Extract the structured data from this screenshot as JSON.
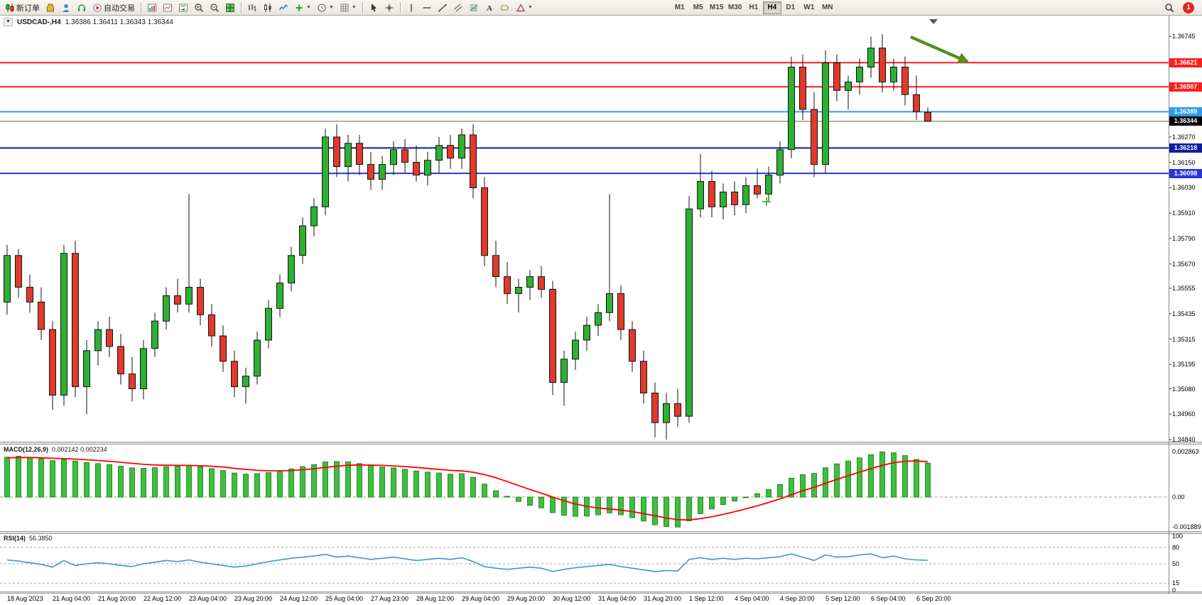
{
  "toolbar": {
    "items": [
      {
        "name": "new-order",
        "icon": "new-order",
        "label": "新订单"
      },
      {
        "name": "metaquotes-app",
        "icon": "jar"
      },
      {
        "name": "profile",
        "icon": "person"
      },
      {
        "name": "market-news",
        "icon": "headset"
      },
      {
        "name": "autotrade",
        "icon": "autotrade",
        "label": "自动交易"
      },
      {
        "sep": true
      },
      {
        "name": "market-watch",
        "icon": "chart-window"
      },
      {
        "name": "data-window",
        "icon": "chart-cross"
      },
      {
        "name": "navigator",
        "icon": "chart-return"
      },
      {
        "name": "zoom-in",
        "icon": "zoom-in"
      },
      {
        "name": "zoom-out",
        "icon": "zoom-out"
      },
      {
        "name": "tile-windows",
        "icon": "tiles"
      },
      {
        "sep": true
      },
      {
        "name": "bar-chart-mode",
        "icon": "bars"
      },
      {
        "name": "candle-chart-mode",
        "icon": "candles"
      },
      {
        "name": "line-chart-mode",
        "icon": "line"
      },
      {
        "name": "add-indicator",
        "icon": "plus",
        "dd": true
      },
      {
        "name": "periods",
        "icon": "clock",
        "dd": true
      },
      {
        "name": "templates",
        "icon": "grid",
        "dd": true
      },
      {
        "sep": true
      },
      {
        "name": "cursor-tool",
        "icon": "cursor"
      },
      {
        "name": "crosshair-tool",
        "icon": "crosshair"
      },
      {
        "sep": true
      },
      {
        "name": "vertical-line-tool",
        "icon": "vline"
      },
      {
        "name": "horizontal-line-tool",
        "icon": "hline"
      },
      {
        "name": "trendline-tool",
        "icon": "trendline"
      },
      {
        "name": "channel-tool",
        "icon": "channel"
      },
      {
        "name": "fibonacci-tool",
        "icon": "fibo"
      },
      {
        "name": "text-tool",
        "icon": "textA"
      },
      {
        "name": "label-tool",
        "icon": "label"
      },
      {
        "name": "shapes-tool",
        "icon": "shapes",
        "dd": true
      }
    ],
    "timeframes": [
      "M1",
      "M5",
      "M15",
      "M30",
      "H1",
      "H4",
      "D1",
      "W1",
      "MN"
    ],
    "active_timeframe": "H4",
    "notification_count": "1"
  },
  "chart_data": {
    "type": "candlestick",
    "symbol": "USDCAD",
    "period": "H4",
    "title": "USDCAD-,H4",
    "ohlc_display": "1.36386 1.36411 1.36343 1.36344",
    "colors": {
      "up": "#2eb133",
      "down": "#e03a2c",
      "outline": "#111111",
      "bid_line": "#777777",
      "bid_label_bg": "#000000",
      "arrow": "#5d8a1e",
      "plus_marker": "#2db32d"
    },
    "price_range": [
      1.3483,
      1.3683
    ],
    "price_ticks": [
      1.36745,
      1.3627,
      1.3615,
      1.3603,
      1.3591,
      1.3579,
      1.3567,
      1.35555,
      1.35435,
      1.35315,
      1.35195,
      1.3508,
      1.3496,
      1.3484
    ],
    "hlines": [
      {
        "price": 1.36621,
        "color": "#ff1e1e",
        "label": "1.36621"
      },
      {
        "price": 1.36507,
        "color": "#ff1e1e",
        "label": "1.36507"
      },
      {
        "price": 1.36389,
        "color": "#2f9bea",
        "label": "1.36389"
      },
      {
        "price": 1.36218,
        "color": "#101c9e",
        "label": "1.36218"
      },
      {
        "price": 1.36098,
        "color": "#2b35d8",
        "label": "1.36098"
      }
    ],
    "bid": {
      "price": 1.36344,
      "label": "1.36344"
    },
    "candles": [
      [
        1.3549,
        1.3576,
        1.3543,
        1.3571
      ],
      [
        1.3571,
        1.3574,
        1.3551,
        1.3556
      ],
      [
        1.3556,
        1.3562,
        1.3544,
        1.3549
      ],
      [
        1.3549,
        1.3556,
        1.3531,
        1.3536
      ],
      [
        1.3536,
        1.354,
        1.3498,
        1.3505
      ],
      [
        1.3505,
        1.3576,
        1.35,
        1.3572
      ],
      [
        1.3572,
        1.3578,
        1.3504,
        1.3509
      ],
      [
        1.3509,
        1.3531,
        1.3496,
        1.3526
      ],
      [
        1.3526,
        1.354,
        1.3519,
        1.3536
      ],
      [
        1.3536,
        1.3542,
        1.3523,
        1.3528
      ],
      [
        1.3528,
        1.3534,
        1.351,
        1.3515
      ],
      [
        1.3515,
        1.3523,
        1.3502,
        1.3508
      ],
      [
        1.3508,
        1.3531,
        1.3503,
        1.3527
      ],
      [
        1.3527,
        1.3544,
        1.3523,
        1.354
      ],
      [
        1.354,
        1.3556,
        1.3536,
        1.3552
      ],
      [
        1.3552,
        1.356,
        1.3544,
        1.3548
      ],
      [
        1.3548,
        1.36,
        1.3544,
        1.3556
      ],
      [
        1.3556,
        1.356,
        1.3538,
        1.3543
      ],
      [
        1.3543,
        1.3548,
        1.3528,
        1.3533
      ],
      [
        1.3533,
        1.3538,
        1.3516,
        1.3521
      ],
      [
        1.3521,
        1.3526,
        1.3504,
        1.3509
      ],
      [
        1.3509,
        1.3518,
        1.3501,
        1.3514
      ],
      [
        1.3514,
        1.3535,
        1.351,
        1.3531
      ],
      [
        1.3531,
        1.355,
        1.3527,
        1.3546
      ],
      [
        1.3546,
        1.3562,
        1.3542,
        1.3558
      ],
      [
        1.3558,
        1.3575,
        1.3554,
        1.3571
      ],
      [
        1.3571,
        1.3589,
        1.3567,
        1.3585
      ],
      [
        1.3585,
        1.3598,
        1.358,
        1.3594
      ],
      [
        1.3594,
        1.3631,
        1.359,
        1.3627
      ],
      [
        1.3627,
        1.3633,
        1.3608,
        1.3613
      ],
      [
        1.3613,
        1.3628,
        1.3606,
        1.3624
      ],
      [
        1.3624,
        1.3628,
        1.3609,
        1.3614
      ],
      [
        1.3614,
        1.362,
        1.3602,
        1.3607
      ],
      [
        1.3607,
        1.3618,
        1.3602,
        1.3614
      ],
      [
        1.3614,
        1.3625,
        1.3609,
        1.3621
      ],
      [
        1.3621,
        1.3626,
        1.361,
        1.3615
      ],
      [
        1.3615,
        1.3623,
        1.3606,
        1.3609
      ],
      [
        1.3609,
        1.362,
        1.3604,
        1.3616
      ],
      [
        1.3616,
        1.3627,
        1.361,
        1.3623
      ],
      [
        1.3623,
        1.3628,
        1.3612,
        1.3617
      ],
      [
        1.3617,
        1.3631,
        1.3612,
        1.3628
      ],
      [
        1.3628,
        1.3633,
        1.3598,
        1.3603
      ],
      [
        1.3603,
        1.3608,
        1.3566,
        1.3571
      ],
      [
        1.3571,
        1.3578,
        1.3556,
        1.3561
      ],
      [
        1.3561,
        1.3568,
        1.3548,
        1.3553
      ],
      [
        1.3553,
        1.356,
        1.3544,
        1.3556
      ],
      [
        1.3556,
        1.3564,
        1.355,
        1.3561
      ],
      [
        1.3561,
        1.3566,
        1.3551,
        1.3555
      ],
      [
        1.3555,
        1.3559,
        1.3505,
        1.3511
      ],
      [
        1.3511,
        1.3526,
        1.35,
        1.3522
      ],
      [
        1.3522,
        1.3535,
        1.3517,
        1.3531
      ],
      [
        1.3531,
        1.3542,
        1.3526,
        1.3538
      ],
      [
        1.3538,
        1.3548,
        1.3533,
        1.3544
      ],
      [
        1.3544,
        1.36,
        1.354,
        1.3553
      ],
      [
        1.3553,
        1.3557,
        1.3531,
        1.3536
      ],
      [
        1.3536,
        1.354,
        1.3516,
        1.3521
      ],
      [
        1.3521,
        1.3526,
        1.3501,
        1.3506
      ],
      [
        1.3506,
        1.3511,
        1.3485,
        1.3492
      ],
      [
        1.3492,
        1.3506,
        1.3484,
        1.3501
      ],
      [
        1.3501,
        1.3508,
        1.349,
        1.3495
      ],
      [
        1.3495,
        1.3599,
        1.3492,
        1.3593
      ],
      [
        1.3593,
        1.3619,
        1.3589,
        1.3606
      ],
      [
        1.3606,
        1.3611,
        1.3589,
        1.3594
      ],
      [
        1.3594,
        1.3605,
        1.3588,
        1.3601
      ],
      [
        1.3601,
        1.3606,
        1.359,
        1.3595
      ],
      [
        1.3595,
        1.3608,
        1.3591,
        1.3604
      ],
      [
        1.3604,
        1.3612,
        1.3598,
        1.36
      ],
      [
        1.36,
        1.3613,
        1.3596,
        1.3609
      ],
      [
        1.3609,
        1.3625,
        1.3605,
        1.3621
      ],
      [
        1.3621,
        1.3665,
        1.3617,
        1.366
      ],
      [
        1.366,
        1.3666,
        1.3635,
        1.364
      ],
      [
        1.364,
        1.3648,
        1.3608,
        1.3614
      ],
      [
        1.3614,
        1.3668,
        1.361,
        1.3662
      ],
      [
        1.3662,
        1.3666,
        1.3644,
        1.3649
      ],
      [
        1.3649,
        1.3656,
        1.364,
        1.3653
      ],
      [
        1.3653,
        1.3664,
        1.3647,
        1.366
      ],
      [
        1.366,
        1.36745,
        1.3655,
        1.3669
      ],
      [
        1.3669,
        1.36755,
        1.3648,
        1.3653
      ],
      [
        1.3653,
        1.3664,
        1.3649,
        1.366
      ],
      [
        1.366,
        1.3665,
        1.3642,
        1.3647
      ],
      [
        1.3647,
        1.3656,
        1.3635,
        1.3639
      ],
      [
        1.36386,
        1.36411,
        1.36343,
        1.36344
      ]
    ],
    "time_labels": [
      "18 Aug 2023",
      "21 Aug 04:00",
      "21 Aug 20:00",
      "22 Aug 12:00",
      "23 Aug 04:00",
      "23 Aug 20:00",
      "24 Aug 12:00",
      "25 Aug 04:00",
      "27 Aug 23:00",
      "28 Aug 12:00",
      "29 Aug 04:00",
      "29 Aug 20:00",
      "30 Aug 12:00",
      "31 Aug 04:00",
      "31 Aug 20:00",
      "1 Sep 12:00",
      "4 Sep 04:00",
      "4 Sep 20:00",
      "5 Sep 12:00",
      "6 Sep 04:00",
      "6 Sep 20:00"
    ],
    "macd": {
      "label": "MACD(12,26,9)",
      "values_label": "0.002142 0.002234",
      "scale_max": "0.002863",
      "scale_zero": "0.00",
      "scale_min": "-0.001889",
      "range": [
        -0.00215,
        0.00332
      ],
      "bar_color": "#3fbf3f",
      "bar_edge": "#117711",
      "signal_color": "#ff0000",
      "histogram": [
        0.00252,
        0.00258,
        0.0025,
        0.00242,
        0.0023,
        0.00238,
        0.00228,
        0.00218,
        0.00212,
        0.00205,
        0.00195,
        0.00185,
        0.00182,
        0.00186,
        0.00192,
        0.00195,
        0.002,
        0.00192,
        0.0018,
        0.00168,
        0.00152,
        0.00145,
        0.00148,
        0.00155,
        0.00165,
        0.00178,
        0.00192,
        0.00205,
        0.00222,
        0.00225,
        0.00222,
        0.00212,
        0.00198,
        0.0019,
        0.00185,
        0.00176,
        0.00165,
        0.00158,
        0.00152,
        0.00145,
        0.00148,
        0.00125,
        0.00082,
        0.0004,
        5e-05,
        -0.00028,
        -0.00052,
        -0.00068,
        -0.00098,
        -0.00115,
        -0.00122,
        -0.0012,
        -0.00112,
        -0.001,
        -0.00112,
        -0.0013,
        -0.00152,
        -0.00175,
        -0.00186,
        -0.00189,
        -0.0015,
        -0.00105,
        -0.00075,
        -0.00048,
        -0.00025,
        -2e-05,
        0.00022,
        0.00048,
        0.0008,
        0.0012,
        0.00142,
        0.0015,
        0.00185,
        0.0021,
        0.00228,
        0.00248,
        0.00268,
        0.00286,
        0.0028,
        0.00262,
        0.00238,
        0.00214
      ],
      "signal": [
        0.00248,
        0.0025,
        0.0025,
        0.00248,
        0.00245,
        0.00243,
        0.0024,
        0.00236,
        0.00231,
        0.00226,
        0.0022,
        0.00213,
        0.00207,
        0.00203,
        0.00201,
        0.002,
        0.002,
        0.00198,
        0.00195,
        0.0019,
        0.00182,
        0.00175,
        0.00169,
        0.00166,
        0.00166,
        0.00168,
        0.00173,
        0.00179,
        0.00188,
        0.00195,
        0.00201,
        0.00203,
        0.00202,
        0.002,
        0.00197,
        0.00193,
        0.00187,
        0.00181,
        0.00175,
        0.00169,
        0.00165,
        0.00157,
        0.00142,
        0.00122,
        0.00098,
        0.00073,
        0.00048,
        0.00025,
        0.0,
        -0.00023,
        -0.00043,
        -0.00058,
        -0.00069,
        -0.00075,
        -0.00082,
        -0.00092,
        -0.00104,
        -0.00118,
        -0.00132,
        -0.00143,
        -0.00144,
        -0.00136,
        -0.00124,
        -0.00109,
        -0.00092,
        -0.00074,
        -0.00055,
        -0.00034,
        -0.00011,
        0.00015,
        0.0004,
        0.00062,
        0.00087,
        0.00112,
        0.00135,
        0.00158,
        0.0018,
        0.00201,
        0.00217,
        0.00226,
        0.00228,
        0.00223
      ]
    },
    "rsi": {
      "label": "RSI(14)",
      "value_label": "56.3850",
      "line_color": "#3a96dd",
      "levels": [
        100,
        80,
        50,
        15,
        0
      ],
      "dashed_levels": [
        80,
        50,
        15
      ],
      "values": [
        57,
        55,
        52,
        49,
        44,
        56,
        47,
        50,
        52,
        50,
        47,
        45,
        50,
        53,
        56,
        54,
        57,
        53,
        50,
        47,
        44,
        46,
        50,
        54,
        57,
        60,
        62,
        64,
        67,
        62,
        64,
        61,
        58,
        60,
        62,
        59,
        56,
        58,
        60,
        58,
        61,
        54,
        45,
        42,
        40,
        42,
        44,
        42,
        36,
        40,
        43,
        45,
        47,
        49,
        45,
        42,
        39,
        36,
        38,
        37,
        58,
        61,
        58,
        60,
        58,
        60,
        59,
        61,
        63,
        68,
        62,
        56,
        66,
        62,
        63,
        66,
        68,
        61,
        64,
        59,
        57,
        56.385
      ]
    }
  }
}
